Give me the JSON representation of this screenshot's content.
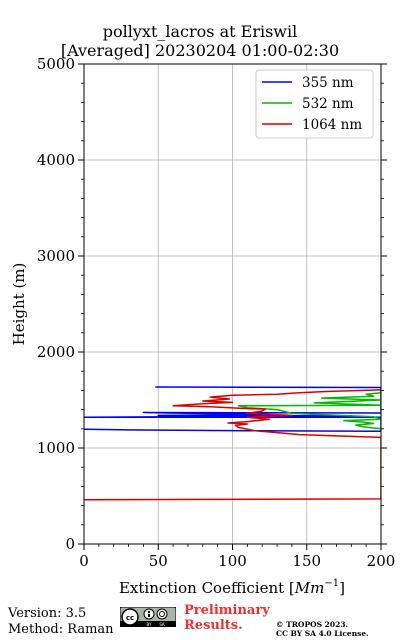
{
  "header": {
    "title_line1": "pollyxt_lacros at Eriswil",
    "title_line2": "[Averaged] 20230204 01:00-02:30"
  },
  "footer": {
    "version": "Version: 3.5",
    "method": "Method: Raman",
    "preliminary_line1": "Preliminary",
    "preliminary_line2": "Results.",
    "copyright_line1": "© TROPOS 2023.",
    "copyright_line2": "CC BY SA 4.0 License.",
    "license_icon": "cc-by-sa-icon"
  },
  "chart_data": {
    "type": "line",
    "title": "pollyxt_lacros at Eriswil [Averaged] 20230204 01:00-02:30",
    "xlabel": "Extinction Coefficient [Mm^-1]",
    "xlabel_base": "Extinction Coefficient [",
    "xlabel_unit": "Mm",
    "xlabel_exp": "−1",
    "xlabel_close": "]",
    "ylabel": "Height (m)",
    "xlim": [
      0,
      200
    ],
    "ylim": [
      0,
      5000
    ],
    "xticks": [
      "0",
      "50",
      "100",
      "150",
      "200"
    ],
    "yticks": [
      "0",
      "1000",
      "2000",
      "3000",
      "4000",
      "5000"
    ],
    "grid": true,
    "legend_position": "top-right",
    "series": [
      {
        "name": "355 nm",
        "color": "#0000ff",
        "points": [
          [
            0,
            1195
          ],
          [
            25,
            1190
          ],
          [
            110,
            1180
          ],
          [
            200,
            1175
          ],
          [
            200,
            1320
          ],
          [
            0,
            1320
          ],
          [
            180,
            1335
          ],
          [
            50,
            1340
          ],
          [
            130,
            1345
          ],
          [
            40,
            1370
          ],
          [
            200,
            1365
          ],
          [
            200,
            1630
          ],
          [
            48,
            1635
          ]
        ]
      },
      {
        "name": "532 nm",
        "color": "#00bb00",
        "points": [
          [
            200,
            1200
          ],
          [
            188,
            1220
          ],
          [
            183,
            1240
          ],
          [
            195,
            1255
          ],
          [
            188,
            1270
          ],
          [
            175,
            1285
          ],
          [
            200,
            1300
          ],
          [
            195,
            1325
          ],
          [
            140,
            1360
          ],
          [
            130,
            1400
          ],
          [
            110,
            1420
          ],
          [
            104,
            1440
          ],
          [
            200,
            1445
          ],
          [
            155,
            1470
          ],
          [
            200,
            1500
          ],
          [
            160,
            1520
          ],
          [
            195,
            1540
          ],
          [
            190,
            1560
          ],
          [
            200,
            1575
          ]
        ]
      },
      {
        "name": "1064 nm",
        "color": "#dd0000",
        "points": [
          [
            0,
            460
          ],
          [
            200,
            470
          ],
          [
            200,
            1110
          ],
          [
            145,
            1140
          ],
          [
            130,
            1160
          ],
          [
            115,
            1180
          ],
          [
            104,
            1215
          ],
          [
            102,
            1235
          ],
          [
            110,
            1250
          ],
          [
            97,
            1260
          ],
          [
            110,
            1275
          ],
          [
            125,
            1300
          ],
          [
            110,
            1320
          ],
          [
            140,
            1340
          ],
          [
            110,
            1360
          ],
          [
            120,
            1385
          ],
          [
            122,
            1405
          ],
          [
            110,
            1410
          ],
          [
            85,
            1430
          ],
          [
            60,
            1440
          ],
          [
            80,
            1460
          ],
          [
            100,
            1475
          ],
          [
            80,
            1490
          ],
          [
            98,
            1510
          ],
          [
            85,
            1530
          ],
          [
            100,
            1550
          ],
          [
            130,
            1560
          ],
          [
            145,
            1575
          ],
          [
            165,
            1590
          ],
          [
            200,
            1605
          ]
        ]
      }
    ]
  }
}
